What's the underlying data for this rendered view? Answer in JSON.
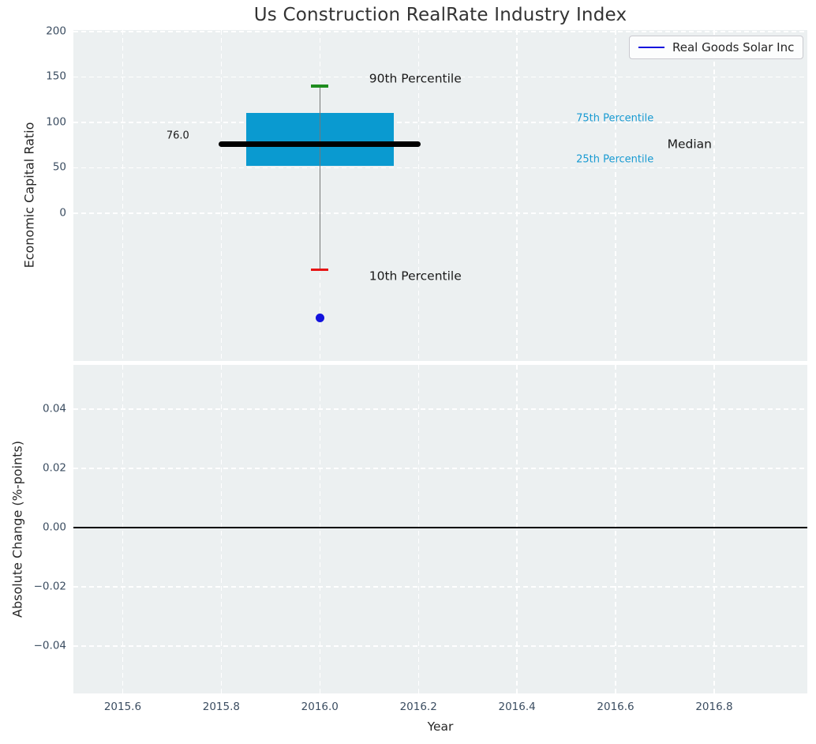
{
  "title": "Us Construction RealRate Industry Index",
  "legend": {
    "label": "Real Goods Solar Inc",
    "line_color": "#1212dd"
  },
  "colors": {
    "plot_background": "#ecf0f1",
    "grid": "#ffffff",
    "box_fill": "#0a9ad0",
    "percentile_text": "#189ad2",
    "p90_cap": "#1e8c1e",
    "p10_cap": "#e61414",
    "company_blue": "#1212dd",
    "median_line": "#000000",
    "whisker": "#777777",
    "zero_line": "#000000",
    "tick_text": "#3b4d61"
  },
  "x_axis": {
    "label": "Year",
    "ticks": [
      2015.6,
      2015.8,
      2016.0,
      2016.2,
      2016.4,
      2016.6,
      2016.8
    ],
    "tick_labels": [
      "2015.6",
      "2015.8",
      "2016.0",
      "2016.2",
      "2016.4",
      "2016.6",
      "2016.8"
    ],
    "xlim": [
      2015.5,
      2016.989
    ]
  },
  "chart_data": [
    {
      "type": "box",
      "title": "Us Construction RealRate Industry Index",
      "ylabel": "Economic Capital Ratio",
      "x": 2016.0,
      "box_halfwidth": 0.15,
      "median_halfwidth": 0.2,
      "percentiles": {
        "p90": 140,
        "p75": 110,
        "median": 76.0,
        "p25": 52,
        "p10": -62
      },
      "median_value_label": "76.0",
      "company_series": {
        "name": "Real Goods Solar Inc",
        "points": [
          {
            "x": 2016.0,
            "y": -115
          }
        ]
      },
      "yticks": [
        200,
        150,
        100,
        50,
        0
      ],
      "ytick_labels": [
        "200",
        "150",
        "100",
        "50",
        "0"
      ],
      "ylim": [
        -162.6,
        201.7
      ],
      "grid": true,
      "legend_position": "upper right",
      "annotations": [
        {
          "id": "p90-label",
          "text": "90th Percentile",
          "x": 2016.1,
          "y": 148,
          "style": "big-black",
          "anchor": "left"
        },
        {
          "id": "p10-label",
          "text": "10th Percentile",
          "x": 2016.1,
          "y": -70,
          "style": "big-black",
          "anchor": "left"
        },
        {
          "id": "median-value-label",
          "text": "76.0",
          "x": 2015.735,
          "y": 85,
          "style": "small-black",
          "anchor": "right"
        },
        {
          "id": "p75-label",
          "text": "75th Percentile",
          "x": 2016.52,
          "y": 104,
          "style": "small-cyan",
          "anchor": "left"
        },
        {
          "id": "p25-label",
          "text": "25th Percentile",
          "x": 2016.52,
          "y": 59,
          "style": "small-cyan",
          "anchor": "left"
        },
        {
          "id": "median-label",
          "text": "Median",
          "x": 2016.705,
          "y": 76,
          "style": "big-black",
          "anchor": "left"
        }
      ]
    },
    {
      "type": "line",
      "ylabel": "Absolute Change (%-points)",
      "xlabel": "Year",
      "yticks": [
        0.04,
        0.02,
        0.0,
        -0.02,
        -0.04
      ],
      "ytick_labels": [
        "0.04",
        "0.02",
        "0.00",
        "−0.02",
        "−0.04"
      ],
      "ylim": [
        -0.056,
        0.0549
      ],
      "grid": true,
      "zero_line": 0.0,
      "series": []
    }
  ]
}
